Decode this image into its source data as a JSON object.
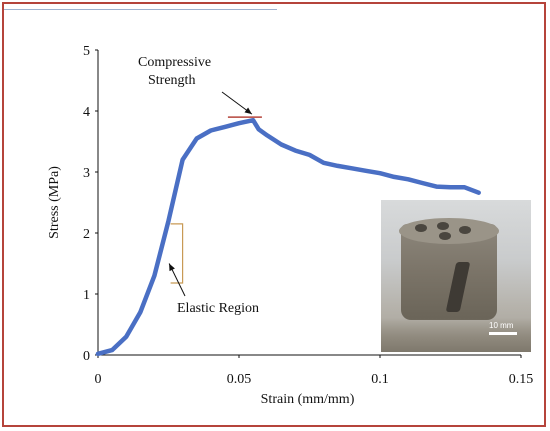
{
  "chart_data": {
    "type": "line",
    "xlabel": "Strain (mm/mm)",
    "ylabel": "Stress (MPa)",
    "xlim": [
      0,
      0.15
    ],
    "ylim": [
      0,
      5
    ],
    "xticks": [
      "0",
      "0.05",
      "0.1",
      "0.15"
    ],
    "yticks": [
      "0",
      "1",
      "2",
      "3",
      "4",
      "5"
    ],
    "series": [
      {
        "color": "#4a6fc4",
        "x": [
          0,
          0.005,
          0.01,
          0.015,
          0.02,
          0.025,
          0.03,
          0.035,
          0.04,
          0.045,
          0.05,
          0.055,
          0.057,
          0.06,
          0.065,
          0.07,
          0.075,
          0.08,
          0.085,
          0.09,
          0.095,
          0.1,
          0.105,
          0.11,
          0.115,
          0.12,
          0.125,
          0.13,
          0.135
        ],
        "y": [
          0.02,
          0.08,
          0.3,
          0.7,
          1.3,
          2.2,
          3.2,
          3.55,
          3.68,
          3.74,
          3.8,
          3.85,
          3.7,
          3.6,
          3.45,
          3.35,
          3.28,
          3.15,
          3.1,
          3.06,
          3.02,
          2.98,
          2.92,
          2.88,
          2.82,
          2.76,
          2.75,
          2.75,
          2.66
        ]
      }
    ],
    "annotations": [
      {
        "text_line1": "Compressive",
        "text_line2": "Strength",
        "target_x": 0.056,
        "target_y": 3.9
      },
      {
        "text": "Elastic Region",
        "target_x": 0.027,
        "target_y": 1.5
      }
    ]
  },
  "inset": {
    "scale_label": "10 mm"
  }
}
